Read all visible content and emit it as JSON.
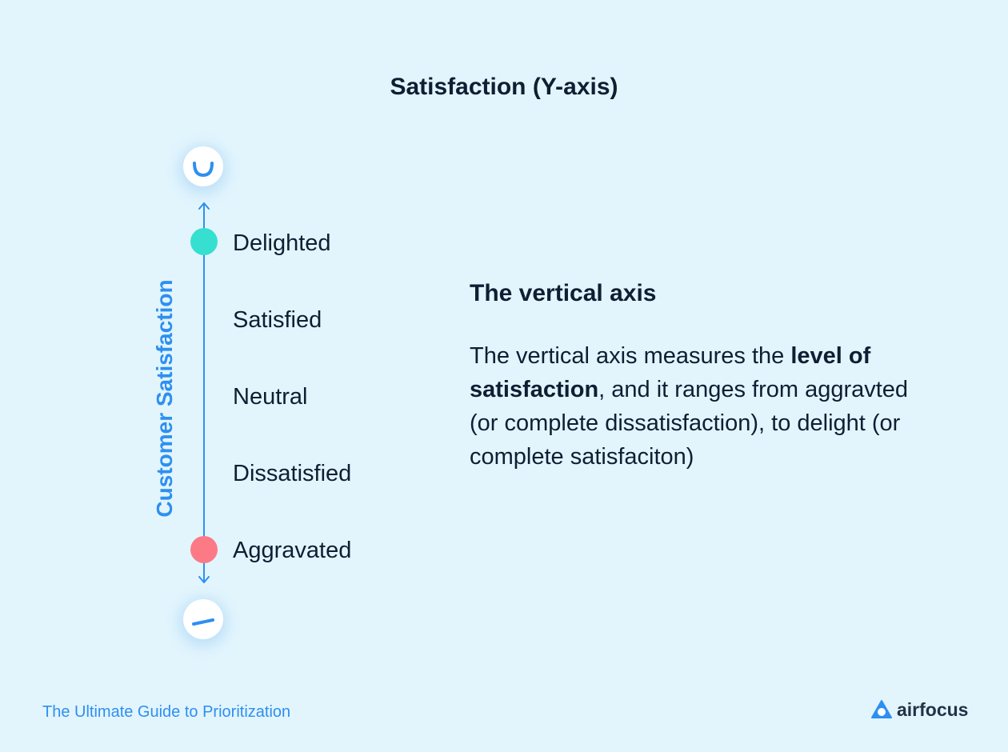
{
  "title": "Satisfaction (Y-axis)",
  "axis_label": "Customer Satisfaction",
  "levels": [
    "Delighted",
    "Satisfied",
    "Neutral",
    "Dissatisfied",
    "Aggravated"
  ],
  "icons": {
    "top": "smile-icon",
    "bottom": "unhappy-icon"
  },
  "colors": {
    "background": "#e2f5fd",
    "accent": "#2e8ff0",
    "delighted_dot": "#36dfcf",
    "aggravated_dot": "#fb7a86",
    "text": "#0f1e33"
  },
  "explanation": {
    "heading": "The vertical axis",
    "text_before": "The vertical axis measures the ",
    "text_bold": "level of satisfaction",
    "text_after": ", and it ranges from aggravted (or complete dissatisfaction), to delight (or complete satisfaciton)"
  },
  "footer": "The Ultimate Guide to Prioritization",
  "brand": "airfocus"
}
